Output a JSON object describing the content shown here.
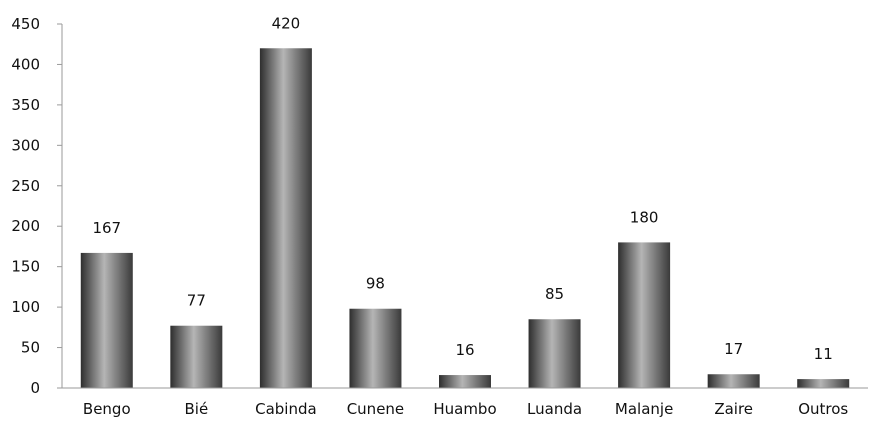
{
  "chart_data": {
    "type": "bar",
    "title": "",
    "xlabel": "",
    "ylabel": "",
    "ylim": [
      0,
      450
    ],
    "y_ticks": [
      0,
      50,
      100,
      150,
      200,
      250,
      300,
      350,
      400,
      450
    ],
    "grid": false,
    "legend": "none",
    "categories": [
      "Bengo",
      "Bié",
      "Cabinda",
      "Cunene",
      "Huambo",
      "Luanda",
      "Malanje",
      "Zaire",
      "Outros"
    ],
    "values": [
      167,
      77,
      420,
      98,
      16,
      85,
      180,
      17,
      11
    ],
    "bar_color": "#5a5a5a"
  }
}
